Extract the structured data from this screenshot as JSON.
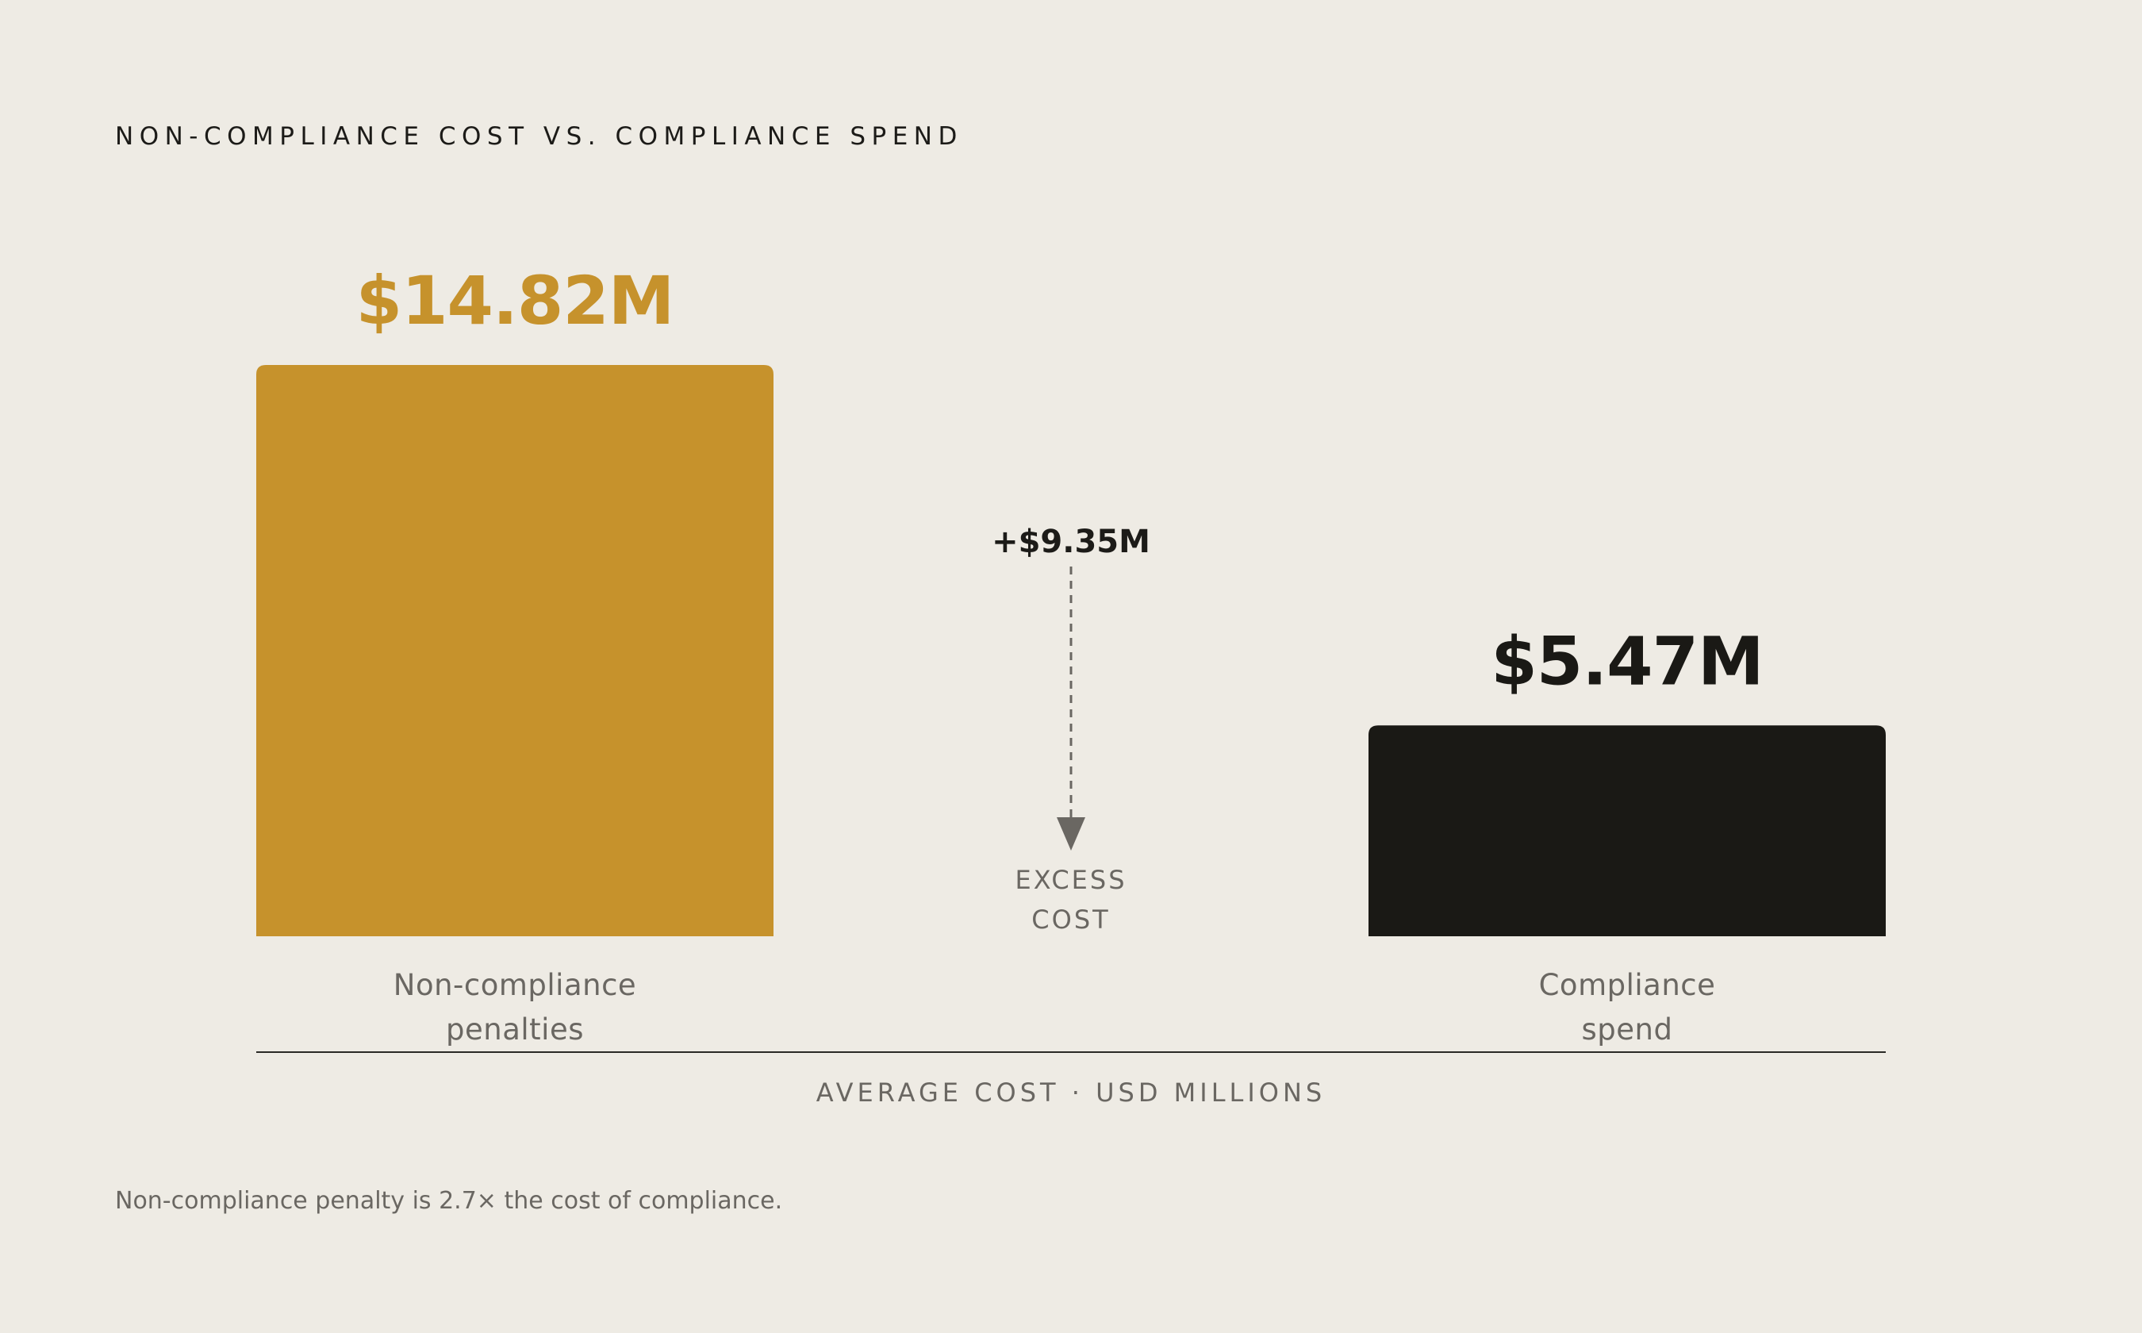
{
  "chart_data": {
    "type": "bar",
    "title": "NON-COMPLIANCE COST VS. COMPLIANCE SPEND",
    "categories": [
      "Non-compliance penalties",
      "Compliance spend"
    ],
    "category_lines": [
      [
        "Non-compliance",
        "penalties"
      ],
      [
        "Compliance",
        "spend"
      ]
    ],
    "values": [
      14.82,
      5.47
    ],
    "value_labels": [
      "$14.82M",
      "$5.47M"
    ],
    "colors": [
      "#C6922C",
      "#1A1915"
    ],
    "ylim": [
      0,
      14.82
    ],
    "grid": false,
    "legend": "none",
    "xlabel": "AVERAGE COST · USD MILLIONS",
    "annotation": {
      "difference_label": "+$9.35M",
      "difference_value": 9.35,
      "caption_lines": [
        "EXCESS",
        "COST"
      ]
    },
    "footnote": "Non-compliance penalty is 2.7× the cost of compliance."
  }
}
